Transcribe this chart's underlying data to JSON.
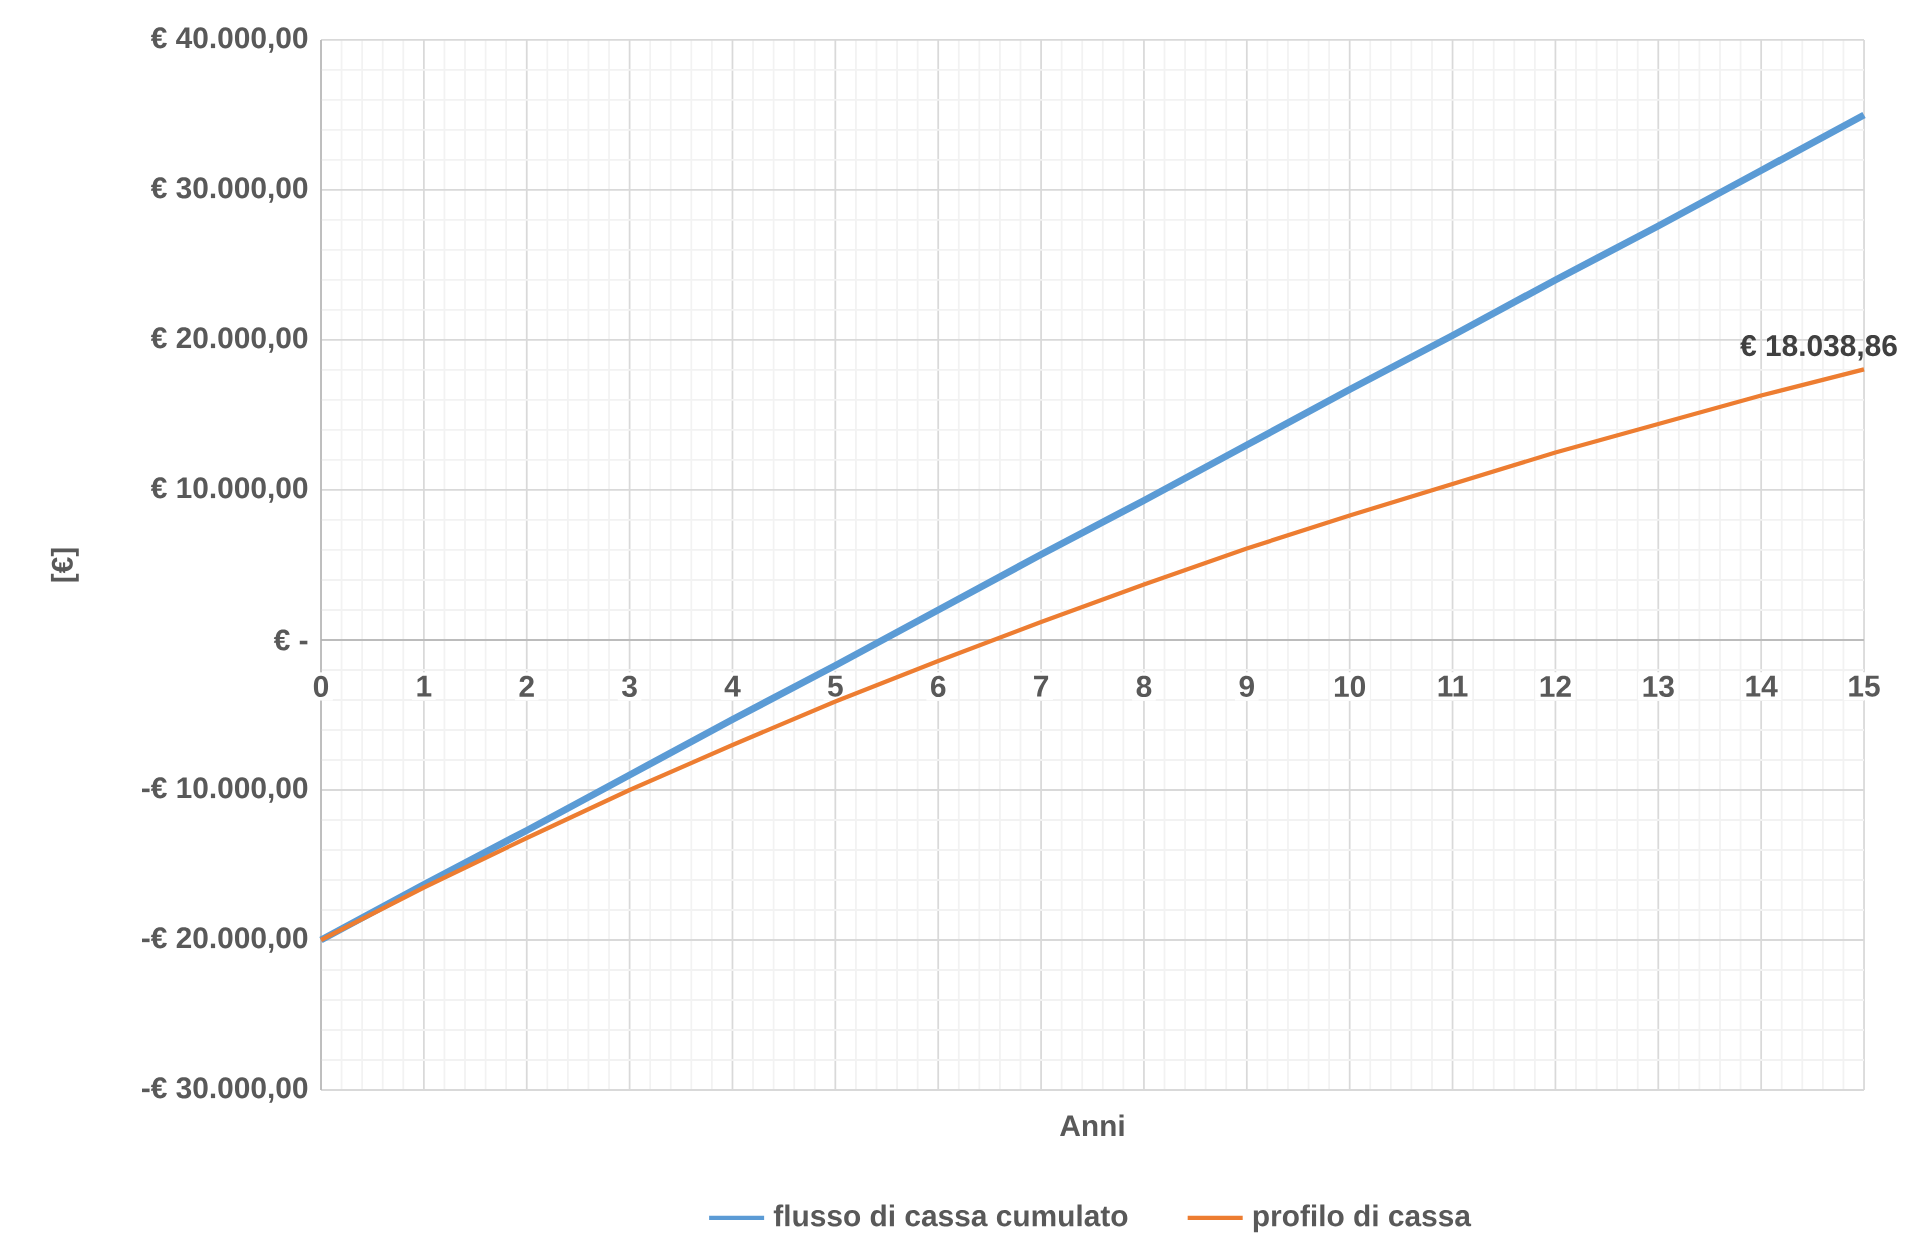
{
  "chart_data": {
    "type": "line",
    "xlabel": "Anni",
    "ylabel": "[€]",
    "x": [
      0,
      1,
      2,
      3,
      4,
      5,
      6,
      7,
      8,
      9,
      10,
      11,
      12,
      13,
      14,
      15
    ],
    "series": [
      {
        "name": "flusso di cassa cumulato",
        "color": "#5b9bd5",
        "values": [
          -20000,
          -16300,
          -12700,
          -9000,
          -5300,
          -1700,
          2000,
          5700,
          9300,
          13000,
          16700,
          20300,
          24000,
          27600,
          31300,
          35000
        ]
      },
      {
        "name": "profilo di cassa",
        "color": "#ed7d31",
        "values": [
          -20000,
          -16500,
          -13200,
          -10000,
          -7000,
          -4100,
          -1400,
          1200,
          3700,
          6100,
          8300,
          10400,
          12500,
          14400,
          16300,
          18038.86
        ]
      }
    ],
    "annotations": [
      {
        "text": "€ 18.038,86",
        "x": 15,
        "y": 18038.86
      }
    ],
    "xlim": [
      0,
      15
    ],
    "xticks": [
      0,
      1,
      2,
      3,
      4,
      5,
      6,
      7,
      8,
      9,
      10,
      11,
      12,
      13,
      14,
      15
    ],
    "ylim": [
      -30000,
      40000
    ],
    "yticks": [
      {
        "value": -30000,
        "label": "-€ 30.000,00"
      },
      {
        "value": -20000,
        "label": "-€ 20.000,00"
      },
      {
        "value": -10000,
        "label": "-€ 10.000,00"
      },
      {
        "value": 0,
        "label": "€ -"
      },
      {
        "value": 10000,
        "label": "€ 10.000,00"
      },
      {
        "value": 20000,
        "label": "€ 20.000,00"
      },
      {
        "value": 30000,
        "label": "€ 30.000,00"
      },
      {
        "value": 40000,
        "label": "€ 40.000,00"
      }
    ],
    "grid": true,
    "legend": "bottom"
  }
}
